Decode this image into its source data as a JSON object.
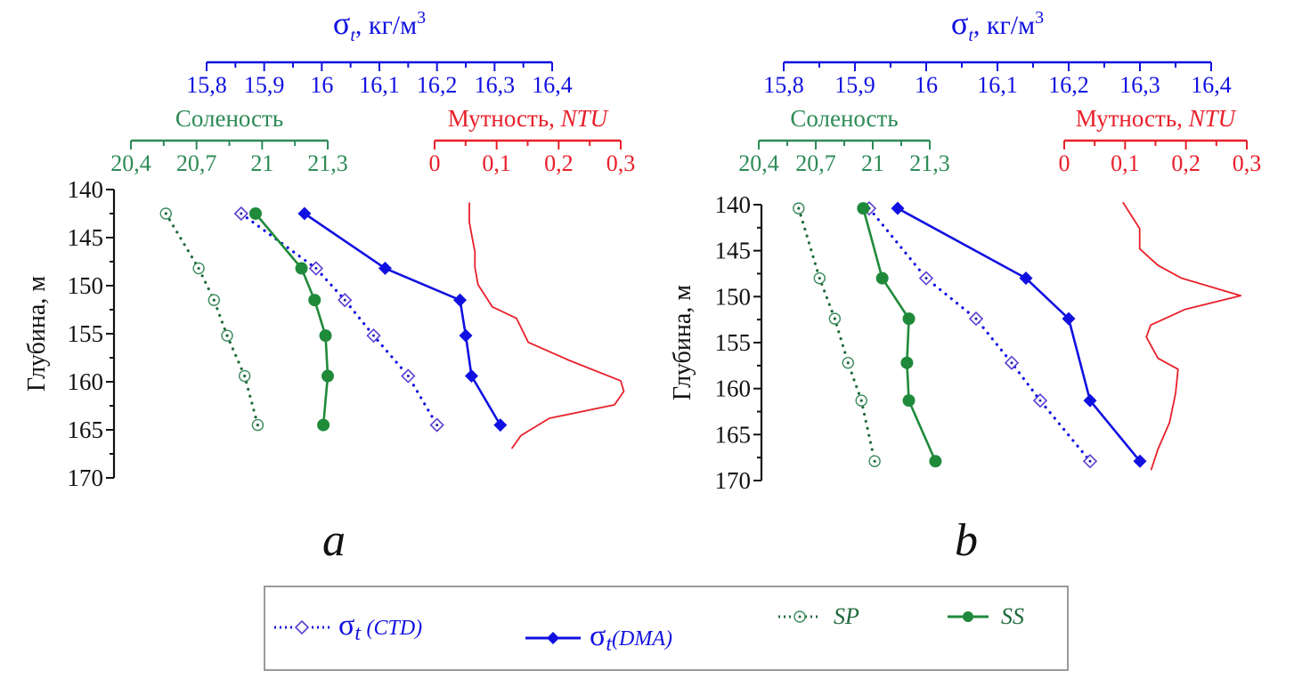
{
  "colors": {
    "sigma": "#1010e0",
    "salinity": "#1f8a3a",
    "salinity_text": "#2e8b57",
    "turbidity": "#e8202a",
    "axis": "#111111"
  },
  "chart_data": [
    {
      "type": "line",
      "panel_label": "a",
      "ylabel": "Глубина, м",
      "ylim": [
        140,
        170
      ],
      "y_inverted": true,
      "yticks": [
        140,
        145,
        150,
        155,
        160,
        165,
        170
      ],
      "ytick_labels": [
        "140",
        "145",
        "150",
        "155",
        "160",
        "165",
        "170"
      ],
      "axes": {
        "sigma": {
          "label": "σt, кг/м3",
          "label_main": "σ",
          "label_sub": "t",
          "label_rest": ", кг/м",
          "label_sup": "3",
          "lim": [
            15.8,
            16.4
          ],
          "ticks": [
            15.8,
            15.9,
            16.0,
            16.1,
            16.2,
            16.3,
            16.4
          ],
          "tick_labels": [
            "15,8",
            "15,9",
            "16",
            "16,1",
            "16,2",
            "16,3",
            "16,4"
          ]
        },
        "salinity": {
          "label": "Соленость",
          "lim": [
            20.4,
            21.3
          ],
          "ticks": [
            20.4,
            20.7,
            21.0,
            21.3
          ],
          "tick_labels": [
            "20,4",
            "20,7",
            "21",
            "21,3"
          ]
        },
        "turbidity": {
          "label": "Мутность, ",
          "label_italic": "NTU",
          "lim": [
            0,
            0.3
          ],
          "ticks": [
            0,
            0.1,
            0.2,
            0.3
          ],
          "tick_labels": [
            "0",
            "0,1",
            "0,2",
            "0,3"
          ]
        }
      },
      "series": [
        {
          "name": "σt (CTD)",
          "axis": "sigma",
          "style": "dotted-open-diamond",
          "depth": [
            142.5,
            148.2,
            151.5,
            155.2,
            159.4,
            164.5
          ],
          "values": [
            15.86,
            15.99,
            16.04,
            16.09,
            16.15,
            16.2
          ]
        },
        {
          "name": "σt (DMA)",
          "axis": "sigma",
          "style": "solid-filled-diamond",
          "depth": [
            142.5,
            148.2,
            151.5,
            155.2,
            159.4,
            164.5
          ],
          "values": [
            15.97,
            16.11,
            16.24,
            16.25,
            16.26,
            16.31
          ]
        },
        {
          "name": "SP",
          "axis": "salinity",
          "style": "dotted-open-circle",
          "depth": [
            142.5,
            148.2,
            151.5,
            155.2,
            159.4,
            164.5
          ],
          "values": [
            20.56,
            20.71,
            20.78,
            20.84,
            20.92,
            20.98
          ]
        },
        {
          "name": "SS",
          "axis": "salinity",
          "style": "solid-filled-circle",
          "depth": [
            142.5,
            148.2,
            151.5,
            155.2,
            159.4,
            164.5
          ],
          "values": [
            20.97,
            21.18,
            21.24,
            21.29,
            21.3,
            21.28
          ]
        },
        {
          "name": "Мутность",
          "axis": "turbidity",
          "style": "solid-line",
          "depth": [
            141.4,
            143.4,
            144.8,
            146.5,
            148.1,
            149.9,
            152.2,
            153.4,
            155.9,
            157.8,
            159.9,
            161.0,
            162.4,
            163.8,
            165.6,
            166.9
          ],
          "values": [
            0.056,
            0.056,
            0.06,
            0.065,
            0.065,
            0.07,
            0.093,
            0.132,
            0.151,
            0.218,
            0.3,
            0.305,
            0.29,
            0.185,
            0.139,
            0.125
          ]
        }
      ]
    },
    {
      "type": "line",
      "panel_label": "b",
      "ylabel": "Глубина, м",
      "ylim": [
        140,
        170
      ],
      "y_inverted": true,
      "yticks": [
        140,
        145,
        150,
        155,
        160,
        165,
        170
      ],
      "ytick_labels": [
        "140",
        "145",
        "150",
        "155",
        "160",
        "165",
        "170"
      ],
      "axes": {
        "sigma": {
          "label": "σt, кг/м3",
          "label_main": "σ",
          "label_sub": "t",
          "label_rest": ", кг/м",
          "label_sup": "3",
          "lim": [
            15.8,
            16.4
          ],
          "ticks": [
            15.8,
            15.9,
            16.0,
            16.1,
            16.2,
            16.3,
            16.4
          ],
          "tick_labels": [
            "15,8",
            "15,9",
            "16",
            "16,1",
            "16,2",
            "16,3",
            "16,4"
          ]
        },
        "salinity": {
          "label": "Соленость",
          "lim": [
            20.4,
            21.3
          ],
          "ticks": [
            20.4,
            20.7,
            21.0,
            21.3
          ],
          "tick_labels": [
            "20,4",
            "20,7",
            "21",
            "21,3"
          ]
        },
        "turbidity": {
          "label": "Мутность, ",
          "label_italic": "NTU",
          "lim": [
            0,
            0.3
          ],
          "ticks": [
            0,
            0.1,
            0.2,
            0.3
          ],
          "tick_labels": [
            "0",
            "0,1",
            "0,2",
            "0,3"
          ]
        }
      },
      "series": [
        {
          "name": "σt (CTD)",
          "axis": "sigma",
          "style": "dotted-open-diamond",
          "depth": [
            140.4,
            148.0,
            152.4,
            157.2,
            161.3,
            167.9
          ],
          "values": [
            15.92,
            16.0,
            16.07,
            16.12,
            16.16,
            16.23
          ]
        },
        {
          "name": "σt (DMA)",
          "axis": "sigma",
          "style": "solid-filled-diamond",
          "depth": [
            140.4,
            148.0,
            152.4,
            161.3,
            167.9
          ],
          "values": [
            15.96,
            16.14,
            16.2,
            16.23,
            16.3
          ]
        },
        {
          "name": "SP",
          "axis": "salinity",
          "style": "dotted-open-circle",
          "depth": [
            140.4,
            148.0,
            152.4,
            157.2,
            161.3,
            167.9
          ],
          "values": [
            20.61,
            20.72,
            20.8,
            20.87,
            20.94,
            21.01
          ]
        },
        {
          "name": "SS",
          "axis": "salinity",
          "style": "solid-filled-circle",
          "depth": [
            140.4,
            148.0,
            152.4,
            157.2,
            161.3,
            167.9
          ],
          "values": [
            20.95,
            21.05,
            21.19,
            21.18,
            21.19,
            21.33
          ]
        },
        {
          "name": "Мутность",
          "axis": "turbidity",
          "style": "solid-line",
          "depth": [
            139.8,
            142.6,
            144.8,
            146.6,
            148.0,
            149.9,
            151.4,
            153.1,
            154.4,
            156.7,
            157.9,
            160.5,
            163.7,
            166.6,
            168.8
          ],
          "values": [
            0.097,
            0.124,
            0.124,
            0.154,
            0.193,
            0.29,
            0.198,
            0.142,
            0.135,
            0.154,
            0.187,
            0.183,
            0.173,
            0.154,
            0.143
          ]
        }
      ]
    }
  ],
  "legend": {
    "items": [
      {
        "key": "ctd",
        "sigma": "σ",
        "sub": "t",
        "paren": "(CTD)"
      },
      {
        "key": "dma",
        "sigma": "σ",
        "sub": "t",
        "paren": "(DMA)"
      },
      {
        "key": "sp",
        "label": "SP"
      },
      {
        "key": "ss",
        "label": "SS"
      }
    ]
  },
  "panel_letters": [
    "a",
    "b"
  ]
}
